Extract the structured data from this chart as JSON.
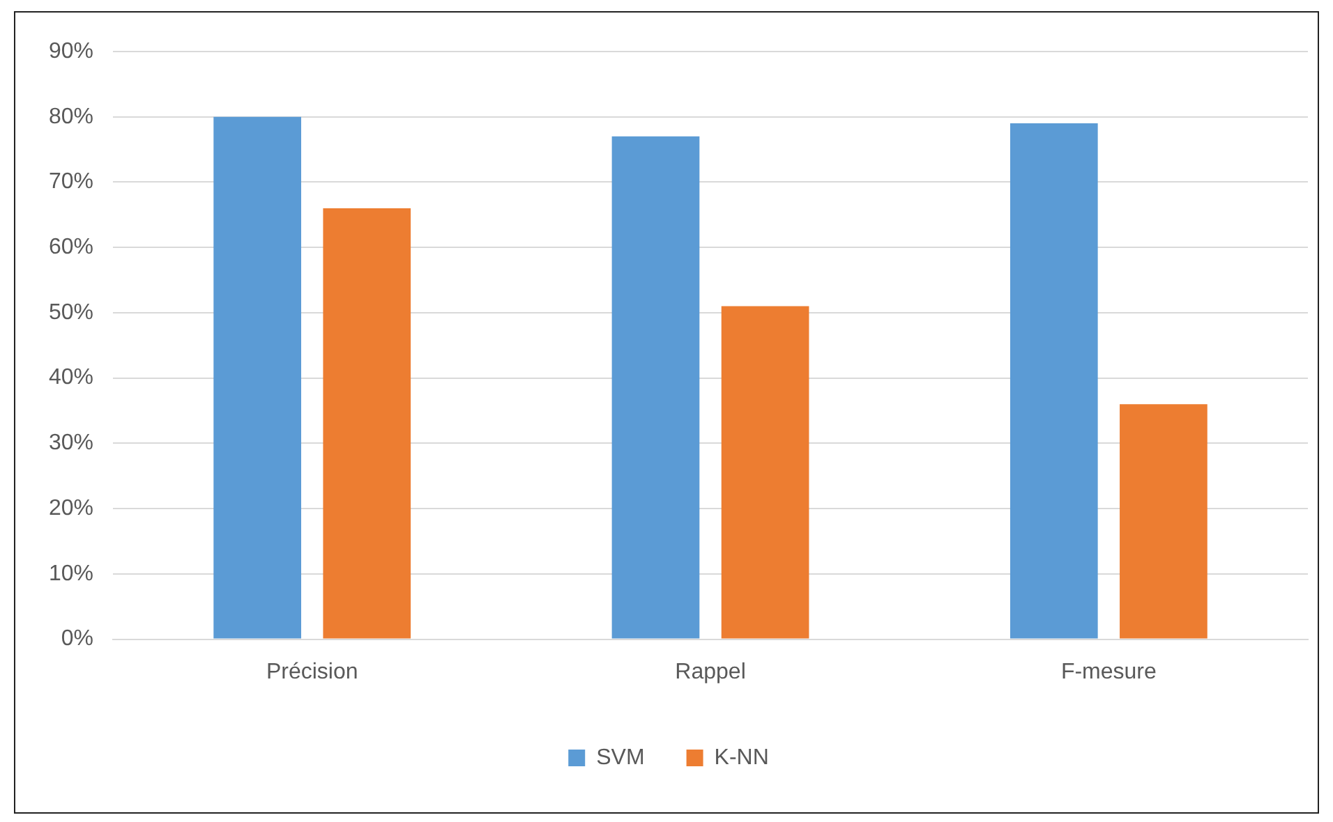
{
  "chart_data": {
    "type": "bar",
    "categories": [
      "Précision",
      "Rappel",
      "F-mesure"
    ],
    "series": [
      {
        "name": "SVM",
        "color": "#5b9bd5",
        "values": [
          80,
          77,
          79
        ]
      },
      {
        "name": "K-NN",
        "color": "#ed7d31",
        "values": [
          66,
          51,
          36
        ]
      }
    ],
    "ylim": [
      0,
      90
    ],
    "yticks": [
      {
        "value": 0,
        "label": "0%"
      },
      {
        "value": 10,
        "label": "10%"
      },
      {
        "value": 20,
        "label": "20%"
      },
      {
        "value": 30,
        "label": "30%"
      },
      {
        "value": 40,
        "label": "40%"
      },
      {
        "value": 50,
        "label": "50%"
      },
      {
        "value": 60,
        "label": "60%"
      },
      {
        "value": 70,
        "label": "70%"
      },
      {
        "value": 80,
        "label": "80%"
      },
      {
        "value": 90,
        "label": "90%"
      }
    ],
    "grid": "y",
    "legend": "bottom"
  }
}
